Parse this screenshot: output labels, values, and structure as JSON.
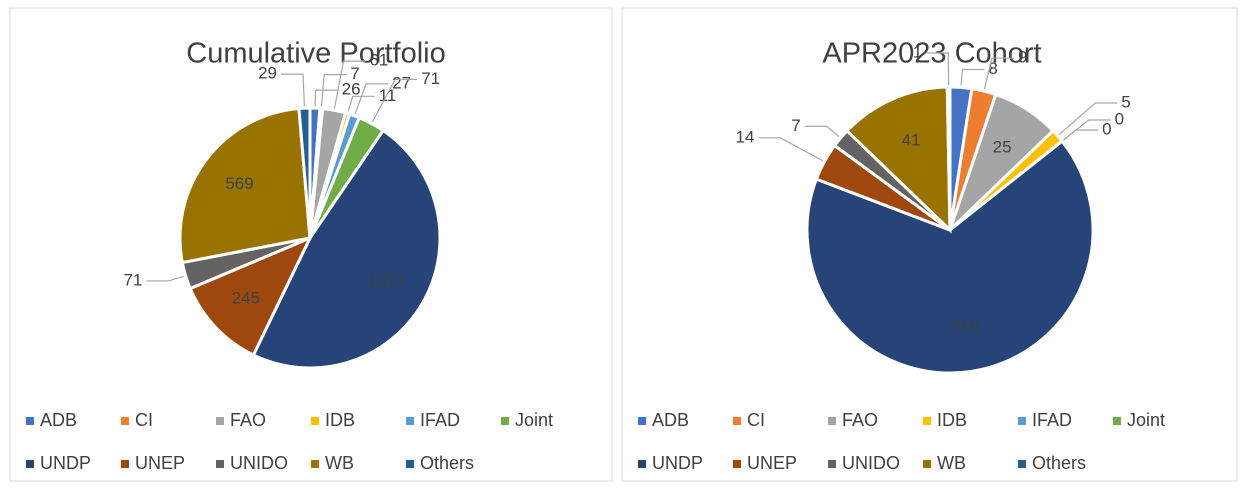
{
  "chart_data": [
    {
      "type": "pie",
      "title": "Cumulative Portfolio",
      "categories": [
        "ADB",
        "CI",
        "FAO",
        "IDB",
        "IFAD",
        "Joint",
        "UNDP",
        "UNEP",
        "UNIDO",
        "WB",
        "Others"
      ],
      "values": [
        26,
        7,
        61,
        11,
        27,
        71,
        1017,
        245,
        71,
        569,
        29
      ],
      "colors": [
        "#4472c4",
        "#ed7d31",
        "#a5a5a5",
        "#ffc000",
        "#5b9bd5",
        "#70ad47",
        "#264478",
        "#9e480e",
        "#636363",
        "#997300",
        "#255e91"
      ]
    },
    {
      "type": "pie",
      "title": "APR2023 Cohort",
      "categories": [
        "ADB",
        "CI",
        "FAO",
        "IDB",
        "IFAD",
        "Joint",
        "UNDP",
        "UNEP",
        "UNIDO",
        "WB",
        "Others"
      ],
      "values": [
        8,
        9,
        25,
        5,
        0,
        0,
        218,
        14,
        7,
        41,
        1
      ],
      "colors": [
        "#4472c4",
        "#ed7d31",
        "#a5a5a5",
        "#ffc000",
        "#5b9bd5",
        "#70ad47",
        "#264478",
        "#9e480e",
        "#636363",
        "#997300",
        "#255e91"
      ]
    }
  ]
}
